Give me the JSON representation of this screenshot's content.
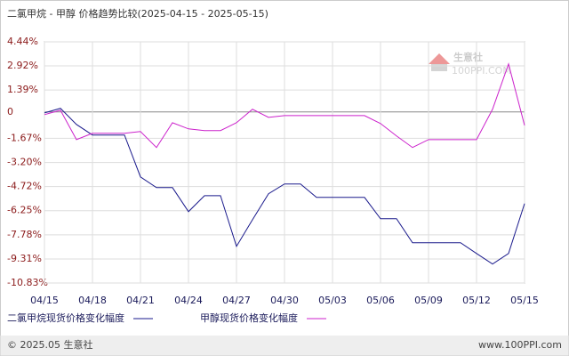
{
  "chart_data": {
    "type": "line",
    "title": "二氯甲烷 - 甲醇 价格趋势比较(2025-04-15 - 2025-05-15)",
    "categories": [
      "04/15",
      null,
      null,
      "04/18",
      null,
      null,
      "04/21",
      null,
      null,
      "04/24",
      null,
      null,
      "04/27",
      null,
      null,
      "04/30",
      null,
      null,
      "05/03",
      null,
      null,
      "05/06",
      null,
      null,
      "05/09",
      null,
      null,
      "05/12",
      null,
      null,
      "05/15"
    ],
    "series": [
      {
        "name": "二氯甲烷现货价格变化幅度",
        "color": "#1a1a8c",
        "values": [
          -0.06,
          0.23,
          -0.79,
          -1.46,
          -1.46,
          -1.46,
          -4.11,
          -4.79,
          -4.79,
          -6.31,
          -5.3,
          -5.3,
          -8.51,
          -6.82,
          -5.18,
          -4.56,
          -4.56,
          -5.41,
          -5.41,
          -5.41,
          -5.41,
          -6.76,
          -6.76,
          -8.28,
          -8.28,
          -8.28,
          -8.28,
          -8.96,
          -9.63,
          -8.96,
          -5.8
        ]
      },
      {
        "name": "甲醇现货价格变化幅度",
        "color": "#cc22cc",
        "values": [
          -0.17,
          0.11,
          -1.75,
          -1.35,
          -1.35,
          -1.35,
          -1.24,
          -2.25,
          -0.68,
          -1.07,
          -1.18,
          -1.18,
          -0.68,
          0.17,
          -0.34,
          -0.23,
          -0.23,
          -0.23,
          -0.23,
          -0.23,
          -0.23,
          -0.73,
          -1.52,
          -2.25,
          -1.75,
          -1.75,
          -1.75,
          -1.75,
          0.17,
          3.04,
          -0.85
        ]
      }
    ],
    "ylim": [
      -10.83,
      4.44
    ],
    "yticks": [
      {
        "value": 4.44,
        "label": "4.44%"
      },
      {
        "value": 2.92,
        "label": "2.92%"
      },
      {
        "value": 1.39,
        "label": "1.39%"
      },
      0,
      {
        "value": -1.67,
        "label": "-1.67%"
      },
      {
        "value": -3.2,
        "label": "-3.20%"
      },
      {
        "value": -4.72,
        "label": "-4.72%"
      },
      {
        "value": -6.25,
        "label": "-6.25%"
      },
      {
        "value": -7.78,
        "label": "-7.78%"
      },
      {
        "value": -9.31,
        "label": "-9.31%"
      },
      {
        "value": -10.83,
        "label": "-10.83%"
      }
    ],
    "grid": true
  },
  "watermark": {
    "name": "生意社",
    "url": "100PPI.COM"
  },
  "footer": {
    "copyright": "© 2025.05 生意社",
    "site": "www.100PPI.com"
  }
}
